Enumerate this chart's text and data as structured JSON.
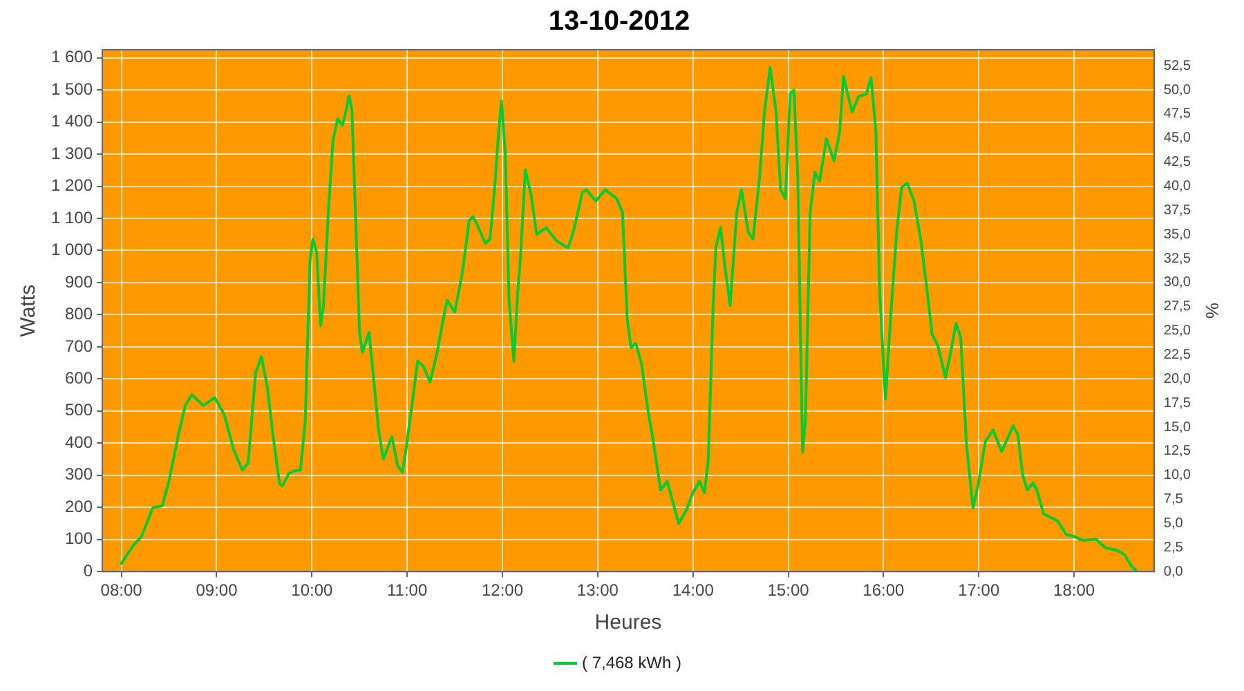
{
  "chart_data": {
    "type": "line",
    "title": "13-10-2012",
    "xlabel": "Heures",
    "ylabel": "Watts",
    "y2label": "%",
    "xlim": [
      7.8,
      18.84
    ],
    "ylim": [
      0,
      1625
    ],
    "y2lim": [
      0,
      54.17
    ],
    "xticks": [
      {
        "value": 8,
        "label": "08:00"
      },
      {
        "value": 9,
        "label": "09:00"
      },
      {
        "value": 10,
        "label": "10:00"
      },
      {
        "value": 11,
        "label": "11:00"
      },
      {
        "value": 12,
        "label": "12:00"
      },
      {
        "value": 13,
        "label": "13:00"
      },
      {
        "value": 14,
        "label": "14:00"
      },
      {
        "value": 15,
        "label": "15:00"
      },
      {
        "value": 16,
        "label": "16:00"
      },
      {
        "value": 17,
        "label": "17:00"
      },
      {
        "value": 18,
        "label": "18:00"
      }
    ],
    "yticks": [
      0,
      100,
      200,
      300,
      400,
      500,
      600,
      700,
      800,
      900,
      {
        "value": 1000,
        "label": "1 000"
      },
      {
        "value": 1100,
        "label": "1 100"
      },
      {
        "value": 1200,
        "label": "1 200"
      },
      {
        "value": 1300,
        "label": "1 300"
      },
      {
        "value": 1400,
        "label": "1 400"
      },
      {
        "value": 1500,
        "label": "1 500"
      },
      {
        "value": 1600,
        "label": "1 600"
      }
    ],
    "y2ticks": [
      {
        "value": 0,
        "label": "0,0"
      },
      {
        "value": 2.5,
        "label": "2,5"
      },
      {
        "value": 5,
        "label": "5,0"
      },
      {
        "value": 7.5,
        "label": "7,5"
      },
      {
        "value": 10,
        "label": "10,0"
      },
      {
        "value": 12.5,
        "label": "12,5"
      },
      {
        "value": 15,
        "label": "15,0"
      },
      {
        "value": 17.5,
        "label": "17,5"
      },
      {
        "value": 20,
        "label": "20,0"
      },
      {
        "value": 22.5,
        "label": "22,5"
      },
      {
        "value": 25,
        "label": "25,0"
      },
      {
        "value": 27.5,
        "label": "27,5"
      },
      {
        "value": 30,
        "label": "30,0"
      },
      {
        "value": 32.5,
        "label": "32,5"
      },
      {
        "value": 35,
        "label": "35,0"
      },
      {
        "value": 37.5,
        "label": "37,5"
      },
      {
        "value": 40,
        "label": "40,0"
      },
      {
        "value": 42.5,
        "label": "42,5"
      },
      {
        "value": 45,
        "label": "45,0"
      },
      {
        "value": 47.5,
        "label": "47,5"
      },
      {
        "value": 50,
        "label": "50,0"
      },
      {
        "value": 52.5,
        "label": "52,5"
      }
    ],
    "grid": true,
    "legend": "bottom",
    "marker": "none",
    "line_style": "solid",
    "series": [
      {
        "name": "( 7,468 kWh )",
        "color": "#00cc33",
        "x": [
          8.0,
          8.06,
          8.14,
          8.21,
          8.33,
          8.43,
          8.5,
          8.6,
          8.67,
          8.74,
          8.86,
          8.98,
          9.08,
          9.18,
          9.27,
          9.33,
          9.41,
          9.47,
          9.53,
          9.59,
          9.66,
          9.69,
          9.76,
          9.81,
          9.88,
          9.93,
          9.98,
          10.01,
          10.05,
          10.09,
          10.12,
          10.17,
          10.22,
          10.27,
          10.32,
          10.35,
          10.39,
          10.42,
          10.46,
          10.5,
          10.53,
          10.6,
          10.66,
          10.7,
          10.75,
          10.84,
          10.9,
          10.95,
          10.99,
          11.04,
          11.11,
          11.17,
          11.24,
          11.31,
          11.38,
          11.42,
          11.5,
          11.58,
          11.65,
          11.69,
          11.75,
          11.82,
          11.87,
          11.92,
          11.96,
          11.99,
          12.03,
          12.07,
          12.12,
          12.16,
          12.19,
          12.24,
          12.3,
          12.36,
          12.46,
          12.57,
          12.69,
          12.75,
          12.84,
          12.88,
          12.98,
          13.08,
          13.2,
          13.26,
          13.31,
          13.35,
          13.4,
          13.46,
          13.53,
          13.58,
          13.66,
          13.73,
          13.85,
          13.93,
          14.0,
          14.07,
          14.12,
          14.16,
          14.21,
          14.24,
          14.29,
          14.34,
          14.39,
          14.46,
          14.51,
          14.58,
          14.63,
          14.7,
          14.75,
          14.81,
          14.87,
          14.92,
          14.97,
          15.02,
          15.06,
          15.1,
          15.15,
          15.18,
          15.23,
          15.28,
          15.33,
          15.4,
          15.48,
          15.54,
          15.58,
          15.67,
          15.74,
          15.82,
          15.87,
          15.92,
          15.96,
          16.02,
          16.08,
          16.14,
          16.19,
          16.25,
          16.32,
          16.39,
          16.46,
          16.51,
          16.57,
          16.65,
          16.71,
          16.76,
          16.81,
          16.87,
          16.94,
          17.0,
          17.07,
          17.15,
          17.24,
          17.29,
          17.36,
          17.41,
          17.46,
          17.51,
          17.57,
          17.61,
          17.68,
          17.83,
          17.92,
          17.99,
          18.09,
          18.23,
          18.33,
          18.45,
          18.53,
          18.6,
          18.65
        ],
        "values": [
          25,
          53,
          87,
          108,
          199,
          205,
          283,
          428,
          517,
          551,
          517,
          542,
          489,
          378,
          316,
          337,
          620,
          669,
          579,
          428,
          274,
          267,
          306,
          313,
          316,
          468,
          967,
          1036,
          995,
          766,
          822,
          1106,
          1341,
          1410,
          1389,
          1424,
          1482,
          1438,
          1092,
          745,
          683,
          745,
          565,
          441,
          350,
          420,
          330,
          309,
          385,
          496,
          655,
          640,
          590,
          676,
          787,
          845,
          808,
          932,
          1092,
          1106,
          1071,
          1022,
          1036,
          1202,
          1369,
          1466,
          1300,
          842,
          655,
          870,
          981,
          1251,
          1175,
          1050,
          1071,
          1029,
          1008,
          1064,
          1182,
          1189,
          1154,
          1189,
          1161,
          1119,
          787,
          697,
          711,
          648,
          496,
          413,
          254,
          281,
          150,
          191,
          246,
          281,
          246,
          344,
          815,
          1009,
          1071,
          939,
          829,
          1119,
          1189,
          1057,
          1036,
          1230,
          1431,
          1570,
          1438,
          1189,
          1161,
          1487,
          1500,
          1230,
          371,
          468,
          1119,
          1244,
          1216,
          1348,
          1279,
          1369,
          1542,
          1431,
          1480,
          1487,
          1538,
          1369,
          870,
          537,
          815,
          1064,
          1196,
          1210,
          1154,
          1036,
          870,
          739,
          704,
          604,
          690,
          773,
          731,
          399,
          198,
          281,
          406,
          441,
          374,
          406,
          454,
          427,
          302,
          254,
          277,
          254,
          180,
          157,
          115,
          111,
          97,
          101,
          74,
          66,
          53,
          18,
          4
        ]
      }
    ]
  }
}
